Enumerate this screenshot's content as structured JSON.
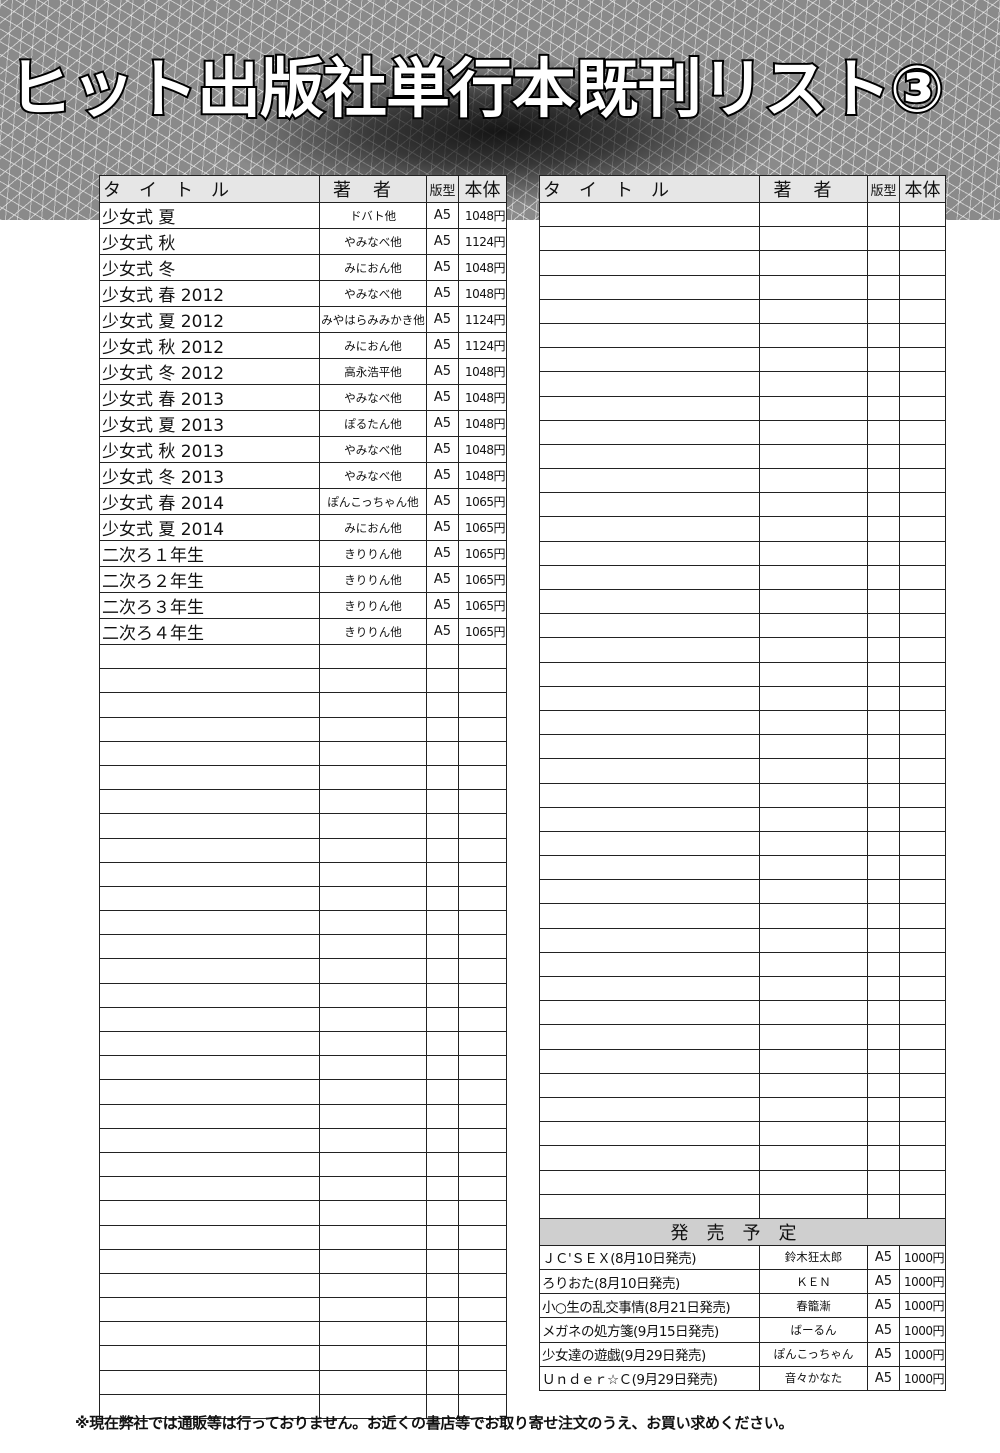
{
  "header": {
    "title": "ヒット出版社単行本既刊リスト③"
  },
  "columns": {
    "title": "タイトル",
    "author": "著者",
    "format": "版型",
    "price": "本体"
  },
  "left_books": [
    {
      "title": "少女式 夏",
      "author": "ドバト他",
      "format": "A5",
      "price": "1048円"
    },
    {
      "title": "少女式 秋",
      "author": "やみなべ他",
      "format": "A5",
      "price": "1124円"
    },
    {
      "title": "少女式 冬",
      "author": "みにおん他",
      "format": "A5",
      "price": "1048円"
    },
    {
      "title": "少女式 春 2012",
      "author": "やみなべ他",
      "format": "A5",
      "price": "1048円"
    },
    {
      "title": "少女式 夏 2012",
      "author": "みやはらみみかき他",
      "format": "A5",
      "price": "1124円"
    },
    {
      "title": "少女式 秋 2012",
      "author": "みにおん他",
      "format": "A5",
      "price": "1124円"
    },
    {
      "title": "少女式 冬 2012",
      "author": "高永浩平他",
      "format": "A5",
      "price": "1048円"
    },
    {
      "title": "少女式 春 2013",
      "author": "やみなべ他",
      "format": "A5",
      "price": "1048円"
    },
    {
      "title": "少女式 夏 2013",
      "author": "ぽるたん他",
      "format": "A5",
      "price": "1048円"
    },
    {
      "title": "少女式 秋 2013",
      "author": "やみなべ他",
      "format": "A5",
      "price": "1048円"
    },
    {
      "title": "少女式 冬 2013",
      "author": "やみなべ他",
      "format": "A5",
      "price": "1048円"
    },
    {
      "title": "少女式 春 2014",
      "author": "ぽんこっちゃん他",
      "format": "A5",
      "price": "1065円"
    },
    {
      "title": "少女式 夏 2014",
      "author": "みにおん他",
      "format": "A5",
      "price": "1065円"
    },
    {
      "title": "二次ろ１年生",
      "author": "きりりん他",
      "format": "A5",
      "price": "1065円"
    },
    {
      "title": "二次ろ２年生",
      "author": "きりりん他",
      "format": "A5",
      "price": "1065円"
    },
    {
      "title": "二次ろ３年生",
      "author": "きりりん他",
      "format": "A5",
      "price": "1065円"
    },
    {
      "title": "二次ろ４年生",
      "author": "きりりん他",
      "format": "A5",
      "price": "1065円"
    }
  ],
  "upcoming": {
    "heading": "発売予定",
    "items": [
      {
        "title": "ＪＣ'ＳＥＸ(8月10日発売)",
        "author": "鈴木狂太郎",
        "format": "A5",
        "price": "1000円"
      },
      {
        "title": "ろりおた(8月10日発売)",
        "author": "ＫＥＮ",
        "format": "A5",
        "price": "1000円"
      },
      {
        "title": "小○生の乱交事情(8月21日発売)",
        "author": "春籠漸",
        "format": "A5",
        "price": "1000円"
      },
      {
        "title": "メガネの処方箋(9月15日発売)",
        "author": "ばーるん",
        "format": "A5",
        "price": "1000円"
      },
      {
        "title": "少女達の遊戯(9月29日発売)",
        "author": "ぽんこっちゃん",
        "format": "A5",
        "price": "1000円"
      },
      {
        "title": "Ｕｎｄｅｒ☆Ｃ(9月29日発売)",
        "author": "音々かなた",
        "format": "A5",
        "price": "1000円"
      }
    ]
  },
  "footer": {
    "note": "※現在弊社では通販等は行っておりません。お近くの書店等でお取り寄せ注文のうえ、お買い求めください。"
  }
}
